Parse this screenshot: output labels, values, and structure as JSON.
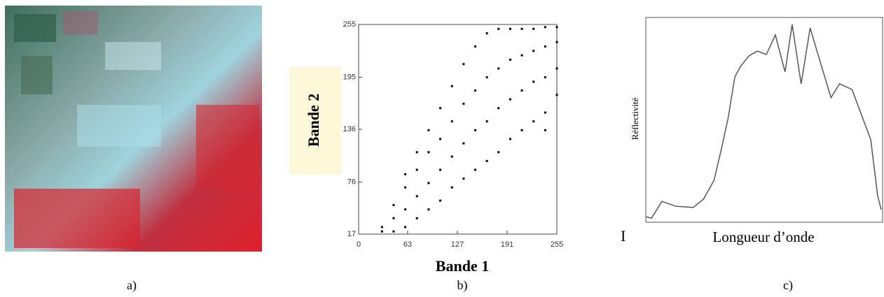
{
  "captions": [
    "a)",
    "b)",
    "c)"
  ],
  "chart_data": [
    {
      "type": "scatter",
      "x_label": "Bande 1",
      "y_label": "Bande 2",
      "color": "#000000",
      "xlim": [
        0,
        255
      ],
      "ylim": [
        17,
        255
      ],
      "xticks": [
        0,
        63,
        127,
        191,
        255
      ],
      "yticks": [
        17,
        76,
        136,
        195,
        255
      ],
      "x": [
        30,
        30,
        45,
        45,
        45,
        60,
        60,
        60,
        60,
        75,
        75,
        75,
        75,
        90,
        90,
        90,
        90,
        105,
        105,
        105,
        105,
        120,
        120,
        120,
        120,
        135,
        135,
        135,
        135,
        150,
        150,
        150,
        150,
        165,
        165,
        165,
        165,
        180,
        180,
        180,
        180,
        195,
        195,
        195,
        195,
        210,
        210,
        210,
        210,
        225,
        225,
        225,
        225,
        240,
        240,
        240,
        240,
        255,
        255,
        255,
        255,
        240
      ],
      "y": [
        20,
        25,
        20,
        35,
        50,
        25,
        45,
        70,
        85,
        35,
        60,
        90,
        110,
        45,
        75,
        110,
        135,
        55,
        90,
        125,
        160,
        70,
        105,
        145,
        185,
        80,
        120,
        165,
        210,
        90,
        135,
        180,
        230,
        100,
        145,
        195,
        245,
        110,
        160,
        205,
        250,
        125,
        170,
        215,
        250,
        135,
        180,
        220,
        250,
        145,
        190,
        225,
        250,
        155,
        195,
        230,
        252,
        175,
        205,
        235,
        252,
        135
      ]
    },
    {
      "type": "line",
      "x_label": "Longueur d’onde",
      "y_label": "Réflectivité",
      "annotation": "I",
      "color": "#555555",
      "xlim": [
        0,
        100
      ],
      "ylim": [
        0,
        100
      ],
      "x": [
        0,
        2.4,
        6.8,
        12.6,
        20,
        24.4,
        28.8,
        31.8,
        34.7,
        37.6,
        40,
        43.5,
        47.1,
        50.9,
        54.7,
        58.8,
        61.8,
        65.6,
        69.4,
        72.9,
        78.2,
        81.8,
        87.1,
        90.6,
        95,
        97.9,
        99.4
      ],
      "values": [
        2.7,
        2.0,
        10.2,
        7.8,
        7.2,
        11.3,
        20.5,
        35.2,
        50.5,
        71.0,
        76.1,
        81.2,
        83.6,
        81.9,
        91.5,
        73.4,
        96.6,
        67.6,
        94.9,
        81.2,
        60.8,
        67.6,
        64.8,
        53.9,
        40.3,
        13,
        6.1
      ]
    }
  ]
}
